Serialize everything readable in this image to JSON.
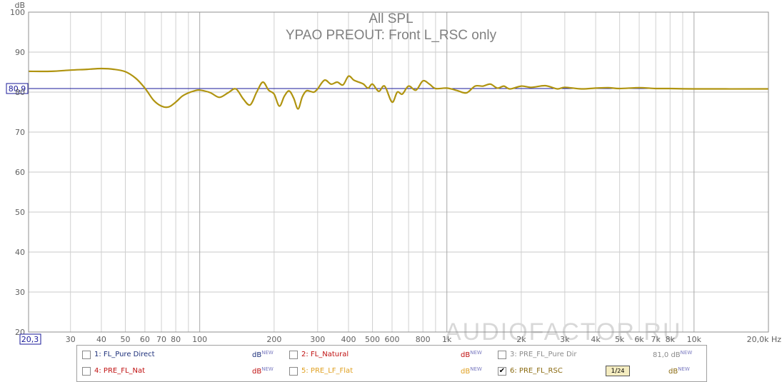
{
  "chart_data": {
    "type": "line",
    "title": "All SPL",
    "subtitle": "YPAO PREOUT: Front L_RSC only",
    "ylabel": "dB",
    "xlabel_unit": "Hz",
    "x_scale": "log",
    "xlim": [
      20.3,
      20000
    ],
    "ylim": [
      20,
      100
    ],
    "yticks": [
      20,
      30,
      40,
      50,
      60,
      70,
      80,
      90,
      100
    ],
    "xtick_labels": [
      {
        "x": 30,
        "label": "30"
      },
      {
        "x": 40,
        "label": "40"
      },
      {
        "x": 50,
        "label": "50"
      },
      {
        "x": 60,
        "label": "60"
      },
      {
        "x": 70,
        "label": "70"
      },
      {
        "x": 80,
        "label": "80"
      },
      {
        "x": 100,
        "label": "100"
      },
      {
        "x": 200,
        "label": "200"
      },
      {
        "x": 300,
        "label": "300"
      },
      {
        "x": 400,
        "label": "400"
      },
      {
        "x": 500,
        "label": "500"
      },
      {
        "x": 600,
        "label": "600"
      },
      {
        "x": 800,
        "label": "800"
      },
      {
        "x": 1000,
        "label": "1k"
      },
      {
        "x": 2000,
        "label": "2k"
      },
      {
        "x": 3000,
        "label": "3k"
      },
      {
        "x": 4000,
        "label": "4k"
      },
      {
        "x": 5000,
        "label": "5k"
      },
      {
        "x": 6000,
        "label": "6k"
      },
      {
        "x": 7000,
        "label": "7k"
      },
      {
        "x": 8000,
        "label": "8k"
      },
      {
        "x": 10000,
        "label": "10k"
      },
      {
        "x": 20000,
        "label": "20,0k Hz"
      }
    ],
    "x_cursor_readout": "20,3",
    "reference_line": {
      "value": 80.9,
      "label": "80,9",
      "color": "#1a1a9a"
    },
    "grid": true,
    "series": [
      {
        "name": "6: PRE_FL_RSC",
        "color": "#b09410",
        "x": [
          20.3,
          25,
          30,
          35,
          40,
          45,
          50,
          55,
          60,
          65,
          70,
          75,
          80,
          85,
          90,
          95,
          100,
          110,
          120,
          130,
          140,
          150,
          160,
          170,
          180,
          190,
          200,
          210,
          220,
          230,
          240,
          250,
          260,
          270,
          280,
          290,
          300,
          320,
          340,
          360,
          380,
          400,
          420,
          440,
          460,
          480,
          500,
          530,
          560,
          600,
          630,
          660,
          700,
          750,
          800,
          850,
          900,
          1000,
          1100,
          1200,
          1300,
          1400,
          1500,
          1600,
          1700,
          1800,
          2000,
          2200,
          2500,
          2800,
          3000,
          3500,
          4000,
          4500,
          5000,
          6000,
          7000,
          8000,
          10000,
          20000
        ],
        "y": [
          85.2,
          85.2,
          85.5,
          85.7,
          85.9,
          85.7,
          85.1,
          83.5,
          81.0,
          78.0,
          76.5,
          76.3,
          77.5,
          79.0,
          79.8,
          80.3,
          80.5,
          79.9,
          78.7,
          79.8,
          80.8,
          78.3,
          76.8,
          80.0,
          82.5,
          80.5,
          79.5,
          76.5,
          79.0,
          80.3,
          78.5,
          75.8,
          78.8,
          80.3,
          80.2,
          80.0,
          80.8,
          83.0,
          82.0,
          82.5,
          81.8,
          84.0,
          83.0,
          82.5,
          82.0,
          81.0,
          82.0,
          80.2,
          81.5,
          77.5,
          80.0,
          79.5,
          81.5,
          80.5,
          82.8,
          82.0,
          80.9,
          81.0,
          80.4,
          79.8,
          81.5,
          81.5,
          82.0,
          81.0,
          81.5,
          80.8,
          81.5,
          81.2,
          81.6,
          80.8,
          81.2,
          80.8,
          81.0,
          81.1,
          80.9,
          81.1,
          80.9,
          80.9,
          80.8,
          80.8
        ]
      }
    ]
  },
  "watermark": "AUDIOFACTOR.RU",
  "legend": {
    "items": [
      {
        "id": "fl-pure-direct",
        "label": "1: FL_Pure Direct",
        "checked": false,
        "unit": "dB",
        "unit_sup": "NEW",
        "value": "",
        "color": "#1c2f7a"
      },
      {
        "id": "fl-natural",
        "label": "2: FL_Natural",
        "checked": false,
        "unit": "dB",
        "unit_sup": "NEW",
        "value": "",
        "color": "#c01010"
      },
      {
        "id": "pre-fl-pure-dir",
        "label": "3: PRE_FL_Pure Dir",
        "checked": false,
        "unit": "dB",
        "unit_sup": "NEW",
        "value": "81,0",
        "color": "#8c8c8c"
      },
      {
        "id": "pre-fl-nat",
        "label": "4: PRE_FL_Nat",
        "checked": false,
        "unit": "dB",
        "unit_sup": "NEW",
        "value": "",
        "color": "#c01010"
      },
      {
        "id": "pre-lf-flat",
        "label": "5: PRE_LF_Flat",
        "checked": false,
        "unit": "dB",
        "unit_sup": "NEW",
        "value": "",
        "color": "#e0a020"
      },
      {
        "id": "pre-fl-rsc",
        "label": "6: PRE_FL_RSC",
        "checked": true,
        "unit": "dB",
        "unit_sup": "NEW",
        "value": "",
        "color": "#8a6a10"
      }
    ],
    "smoothing": {
      "num": "1",
      "den": "24"
    }
  }
}
